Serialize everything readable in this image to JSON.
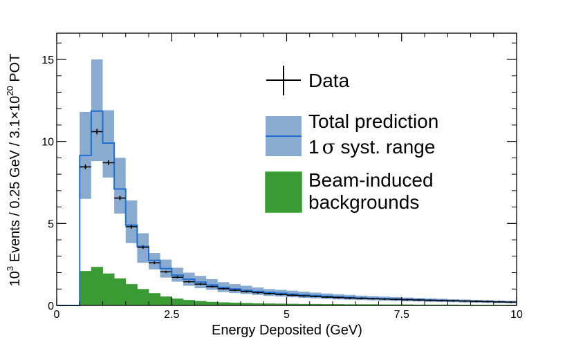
{
  "chart_data": {
    "type": "histogram",
    "xlabel": "Energy Deposited (GeV)",
    "ylabel": {
      "base": "10",
      "exp": "3",
      "mid": " Events / 0.25 GeV / 3.1",
      "times": "×",
      "base2": "10",
      "exp2": "20",
      "tail": " POT"
    },
    "xlim": [
      0,
      10
    ],
    "ylim": [
      0,
      16.6
    ],
    "x_ticks": [
      {
        "value": 0,
        "label": "0"
      },
      {
        "value": 2.5,
        "label": "2.5"
      },
      {
        "value": 5,
        "label": "5"
      },
      {
        "value": 7.5,
        "label": "7.5"
      },
      {
        "value": 10,
        "label": "10"
      }
    ],
    "y_ticks": [
      {
        "value": 0,
        "label": "0"
      },
      {
        "value": 5,
        "label": "5"
      },
      {
        "value": 10,
        "label": "10"
      },
      {
        "value": 15,
        "label": "15"
      }
    ],
    "bin_width": 0.25,
    "bin_edges_start": 0,
    "prediction": [
      0,
      0,
      9.15,
      11.85,
      9.9,
      7.1,
      4.9,
      3.6,
      2.75,
      2.25,
      1.85,
      1.6,
      1.42,
      1.25,
      1.1,
      1.0,
      0.92,
      0.85,
      0.79,
      0.74,
      0.69,
      0.64,
      0.6,
      0.56,
      0.52,
      0.49,
      0.46,
      0.43,
      0.41,
      0.39,
      0.37,
      0.35,
      0.33,
      0.31,
      0.29,
      0.27,
      0.25,
      0.23,
      0.21,
      0.2
    ],
    "syst_low": [
      0,
      0,
      6.5,
      8.8,
      7.8,
      5.6,
      3.8,
      2.6,
      2.2,
      1.7,
      1.45,
      1.2,
      1.05,
      0.95,
      0.82,
      0.75,
      0.7,
      0.64,
      0.58,
      0.54,
      0.5,
      0.46,
      0.43,
      0.4,
      0.37,
      0.35,
      0.33,
      0.31,
      0.29,
      0.27,
      0.25,
      0.24,
      0.22,
      0.21,
      0.2,
      0.18,
      0.17,
      0.16,
      0.15,
      0.14
    ],
    "syst_high": [
      0,
      0,
      11.8,
      15.0,
      11.9,
      9.0,
      6.4,
      4.4,
      3.2,
      2.8,
      2.3,
      2.0,
      1.8,
      1.6,
      1.42,
      1.3,
      1.2,
      1.1,
      1.0,
      0.95,
      0.9,
      0.84,
      0.78,
      0.73,
      0.68,
      0.64,
      0.6,
      0.57,
      0.54,
      0.51,
      0.48,
      0.45,
      0.43,
      0.41,
      0.38,
      0.36,
      0.34,
      0.32,
      0.3,
      0.28
    ],
    "data": [
      null,
      null,
      8.45,
      10.6,
      8.7,
      6.55,
      4.8,
      3.55,
      2.6,
      2.05,
      1.72,
      1.45,
      1.3,
      1.15,
      1.02,
      0.93,
      0.85,
      0.78,
      0.72,
      0.67,
      0.62,
      0.58,
      0.55,
      0.51,
      0.48,
      0.45,
      0.43,
      0.41,
      0.39,
      0.37,
      0.35,
      0.33,
      0.31,
      0.3,
      0.28,
      0.27,
      0.25,
      0.24,
      0.22,
      0.2
    ],
    "data_err": [
      0,
      0,
      0.15,
      0.17,
      0.15,
      0.13,
      0.11,
      0.1,
      0.08,
      0.07,
      0.07,
      0.06,
      0.06,
      0.05,
      0.05,
      0.05,
      0.05,
      0.04,
      0.04,
      0.04,
      0.04,
      0.04,
      0.04,
      0.03,
      0.03,
      0.03,
      0.03,
      0.03,
      0.03,
      0.03,
      0.03,
      0.03,
      0.03,
      0.03,
      0.03,
      0.02,
      0.02,
      0.02,
      0.02,
      0.02
    ],
    "background": [
      0,
      0,
      2.1,
      2.35,
      1.95,
      1.65,
      1.3,
      1.0,
      0.75,
      0.55,
      0.42,
      0.33,
      0.27,
      0.22,
      0.19,
      0.17,
      0.15,
      0.13,
      0.12,
      0.11,
      0.1,
      0.09,
      0.09,
      0.08,
      0.08,
      0.07,
      0.07,
      0.07,
      0.06,
      0.06,
      0.06,
      0.05,
      0.05,
      0.05,
      0.05,
      0.04,
      0.04,
      0.04,
      0.04,
      0.04
    ],
    "legend": {
      "data": "Data",
      "prediction_line1": "Total prediction",
      "prediction_line2_sigma": "1",
      "prediction_line2_symbol": "σ",
      "prediction_line2_rest": " syst. range",
      "background_line1": "Beam-induced",
      "background_line2": "backgrounds"
    },
    "colors": {
      "prediction_line": "#1f6fd0",
      "syst_band": "#8aabd0",
      "background_fill": "#3a9a34",
      "background_edge": "#2fa62a",
      "data": "#000000"
    }
  }
}
